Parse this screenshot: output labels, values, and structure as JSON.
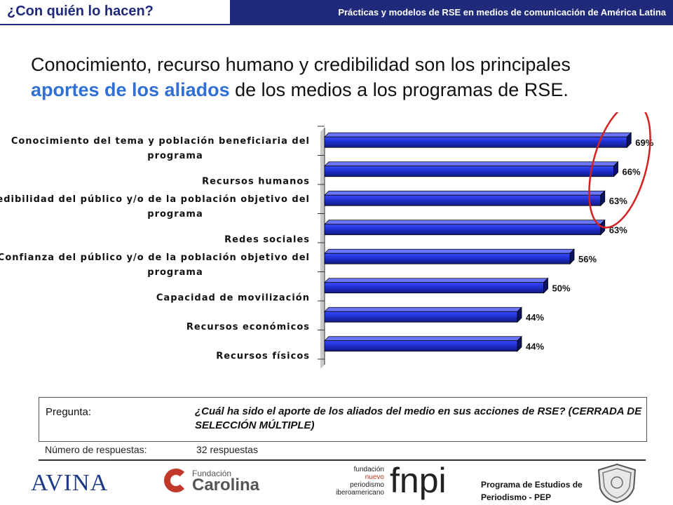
{
  "header": {
    "tab_title": "¿Con quién lo hacen?",
    "banner": "Prácticas y modelos de RSE en medios de comunicación de América Latina"
  },
  "title": {
    "line1": "Conocimiento, recurso humano y credibilidad son los principales",
    "highlight": "aportes de los aliados",
    "rest": " de los medios a los programas de RSE."
  },
  "chart_data": {
    "type": "bar",
    "orientation": "horizontal",
    "categories": [
      [
        "Conocimiento del tema y población beneficiaria del",
        "programa"
      ],
      [
        "Recursos humanos"
      ],
      [
        "Credibilidad del público y/o de la población objetivo del",
        "programa"
      ],
      [
        "Redes sociales"
      ],
      [
        "Confianza del público y/o de la población objetivo del",
        "programa"
      ],
      [
        "Capacidad de movilización"
      ],
      [
        "Recursos económicos"
      ],
      [
        "Recursos físicos"
      ]
    ],
    "values": [
      69,
      66,
      63,
      63,
      56,
      50,
      44,
      44
    ],
    "value_labels": [
      "69%",
      "66%",
      "63%",
      "63%",
      "56%",
      "50%",
      "44%",
      "44%"
    ],
    "xlim": [
      0,
      100
    ],
    "bar_color": "#1f2fd0",
    "highlight": {
      "shape": "ellipse",
      "color": "#d42020",
      "covers_categories": [
        0,
        1,
        2
      ]
    }
  },
  "question": {
    "label": "Pregunta:",
    "text": "¿Cuál ha sido el aporte de los aliados del medio en sus acciones de RSE? (CERRADA DE SELECCIÓN MÚLTIPLE)"
  },
  "responses": {
    "label": "Número de respuestas:",
    "value": "32 respuestas"
  },
  "footer": {
    "avina": "AVINA",
    "carolina_small": "Fundación",
    "carolina_big": "Carolina",
    "fnpi_words": [
      "fundación",
      "nuevo",
      "periodismo",
      "iberoamericano"
    ],
    "fnpi_big": "fnpi",
    "pep_line1": "Programa de Estudios de",
    "pep_line2": "Periodismo - PEP"
  }
}
